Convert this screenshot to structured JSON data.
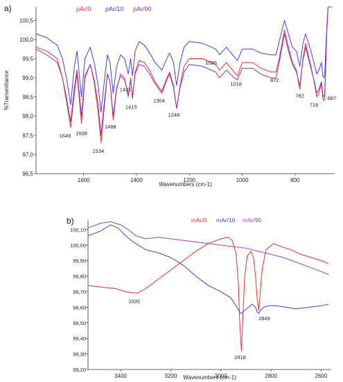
{
  "chart_data": [
    {
      "panel_label": "a)",
      "type": "line",
      "xlabel": "Wavenumbers (cm-1)",
      "ylabel": "%Transmittance",
      "xlim": [
        1780,
        650
      ],
      "ylim": [
        96.5,
        100.85
      ],
      "x_ticks": [
        1600,
        1400,
        1200,
        1000,
        800
      ],
      "x_tick_labels": [
        "1600",
        "1400",
        "1200",
        "1000",
        "800"
      ],
      "y_ticks": [
        96.5,
        97.0,
        97.5,
        98.0,
        98.5,
        99.0,
        99.5,
        100.0,
        100.5
      ],
      "y_tick_labels": [
        "96,5",
        "97,0",
        "97,5",
        "98,0",
        "98,5",
        "99,0",
        "99,5",
        "100,0",
        "100,5"
      ],
      "legend_position": "top-left",
      "series": [
        {
          "name": "pAr/0",
          "color": "#ee2c2c",
          "x": [
            1780,
            1740,
            1700,
            1680,
            1665,
            1649,
            1635,
            1625,
            1608,
            1595,
            1575,
            1560,
            1545,
            1534,
            1525,
            1510,
            1500,
            1488,
            1475,
            1460,
            1445,
            1431,
            1422,
            1415,
            1405,
            1390,
            1370,
            1350,
            1330,
            1304,
            1285,
            1275,
            1260,
            1248,
            1235,
            1220,
            1200,
            1150,
            1100,
            1086,
            1060,
            1030,
            1018,
            1000,
            960,
            930,
            890,
            872,
            860,
            840,
            825,
            810,
            795,
            782,
            770,
            760,
            740,
            725,
            718,
            710,
            700,
            695,
            690,
            687,
            680,
            675,
            665,
            660
          ],
          "y": [
            99.8,
            99.7,
            99.5,
            99.0,
            98.4,
            97.7,
            98.6,
            99.1,
            97.8,
            99.0,
            99.35,
            98.9,
            98.1,
            97.3,
            98.0,
            99.1,
            98.9,
            97.9,
            98.7,
            99.1,
            99.0,
            98.5,
            99.0,
            98.45,
            99.15,
            99.45,
            99.4,
            99.2,
            98.9,
            98.65,
            99.0,
            99.15,
            98.8,
            98.2,
            98.8,
            99.3,
            99.5,
            99.5,
            99.35,
            99.2,
            99.4,
            99.15,
            99.05,
            99.4,
            99.4,
            99.25,
            99.15,
            99.15,
            99.5,
            100.25,
            99.8,
            99.4,
            99.2,
            98.7,
            99.5,
            99.9,
            99.3,
            98.8,
            98.5,
            98.6,
            98.85,
            98.45,
            98.4,
            98.6,
            100.2,
            100.85,
            100.85,
            100.85
          ],
          "annotations": [
            {
              "x": 1649,
              "label": "1649"
            },
            {
              "x": 1608,
              "label": "1608"
            },
            {
              "x": 1534,
              "label": "1534"
            },
            {
              "x": 1488,
              "label": "1488"
            },
            {
              "x": 1431,
              "label": "1431"
            },
            {
              "x": 1415,
              "label": "1415"
            },
            {
              "x": 1304,
              "label": "1304"
            },
            {
              "x": 1248,
              "label": "1248"
            },
            {
              "x": 1086,
              "label": "1086"
            },
            {
              "x": 1018,
              "label": "1018"
            },
            {
              "x": 872,
              "label": "872"
            },
            {
              "x": 782,
              "label": "782"
            },
            {
              "x": 718,
              "label": "718"
            },
            {
              "x": 687,
              "label": "687"
            }
          ]
        },
        {
          "name": "pAr/10",
          "color": "#3d3df0",
          "x": [
            1780,
            1740,
            1700,
            1680,
            1665,
            1649,
            1635,
            1625,
            1608,
            1595,
            1575,
            1560,
            1545,
            1534,
            1525,
            1510,
            1500,
            1488,
            1475,
            1460,
            1445,
            1431,
            1422,
            1415,
            1405,
            1390,
            1370,
            1350,
            1330,
            1304,
            1285,
            1275,
            1260,
            1248,
            1235,
            1220,
            1200,
            1150,
            1100,
            1086,
            1060,
            1030,
            1018,
            1000,
            960,
            930,
            890,
            872,
            860,
            840,
            825,
            810,
            795,
            782,
            770,
            760,
            740,
            725,
            718,
            710,
            700,
            695,
            690,
            687,
            680,
            675,
            665,
            660
          ],
          "y": [
            100.15,
            100.05,
            99.85,
            99.5,
            99.0,
            98.3,
            99.3,
            99.7,
            98.5,
            99.5,
            99.8,
            99.4,
            98.8,
            98.1,
            98.7,
            99.6,
            99.4,
            98.6,
            99.3,
            99.6,
            99.5,
            99.1,
            99.5,
            99.05,
            99.7,
            99.95,
            99.85,
            99.65,
            99.4,
            99.2,
            99.5,
            99.65,
            99.4,
            98.8,
            99.4,
            99.8,
            99.95,
            99.9,
            99.75,
            99.6,
            99.8,
            99.55,
            99.45,
            99.75,
            99.75,
            99.65,
            99.6,
            99.6,
            99.95,
            100.5,
            100.15,
            99.8,
            99.7,
            99.3,
            99.9,
            100.15,
            99.7,
            99.3,
            99.1,
            99.2,
            99.4,
            99.05,
            99.0,
            99.2,
            100.3,
            100.85,
            100.85,
            100.85
          ]
        },
        {
          "name": "pAr/90",
          "color": "#8a2fbf",
          "x": [
            1780,
            1740,
            1700,
            1680,
            1665,
            1649,
            1635,
            1625,
            1608,
            1595,
            1575,
            1560,
            1545,
            1534,
            1525,
            1510,
            1500,
            1488,
            1475,
            1460,
            1445,
            1431,
            1422,
            1415,
            1405,
            1390,
            1370,
            1350,
            1330,
            1304,
            1285,
            1275,
            1260,
            1248,
            1235,
            1220,
            1200,
            1150,
            1100,
            1086,
            1060,
            1030,
            1018,
            1000,
            960,
            930,
            890,
            872,
            860,
            840,
            825,
            810,
            795,
            782,
            770,
            760,
            740,
            725,
            718,
            710,
            700,
            695,
            690,
            687,
            680,
            675,
            665,
            660
          ],
          "y": [
            99.75,
            99.6,
            99.4,
            99.0,
            98.5,
            97.85,
            98.75,
            99.2,
            98.0,
            99.05,
            99.35,
            98.95,
            98.3,
            97.5,
            98.15,
            99.1,
            98.9,
            98.0,
            98.75,
            99.05,
            98.95,
            98.55,
            98.95,
            98.5,
            99.1,
            99.35,
            99.3,
            99.1,
            98.85,
            98.6,
            98.95,
            99.1,
            98.75,
            98.2,
            98.75,
            99.15,
            99.35,
            99.3,
            99.15,
            99.0,
            99.2,
            99.0,
            98.95,
            99.25,
            99.25,
            99.1,
            99.0,
            99.0,
            99.4,
            100.15,
            99.7,
            99.35,
            99.15,
            98.8,
            99.45,
            99.8,
            99.25,
            98.85,
            98.6,
            98.7,
            98.9,
            98.55,
            98.5,
            98.7,
            100.2,
            100.85,
            100.85,
            100.85
          ]
        }
      ]
    },
    {
      "panel_label": "b)",
      "type": "line",
      "xlabel": "Wavenumbers (cm-1)",
      "ylabel": "",
      "xlim": [
        3530,
        2560
      ],
      "ylim": [
        99.2,
        100.16
      ],
      "x_ticks": [
        3400,
        3200,
        3000,
        2800,
        2600
      ],
      "x_tick_labels": [
        "3400",
        "3200",
        "3000",
        "2800",
        "2600"
      ],
      "y_ticks": [
        99.2,
        99.3,
        99.4,
        99.5,
        99.6,
        99.7,
        99.8,
        99.9,
        100.0,
        100.1
      ],
      "y_tick_labels": [
        "99,20",
        "99,30",
        "99,40",
        "99,50",
        "99,60",
        "99,70",
        "99,80",
        "99,90",
        "100,00",
        "100,10"
      ],
      "legend_position": "top-right",
      "series": [
        {
          "name": "mAr/0",
          "color": "#ee2c2c",
          "x": [
            3530,
            3480,
            3420,
            3380,
            3335,
            3300,
            3250,
            3200,
            3150,
            3100,
            3050,
            3000,
            2970,
            2955,
            2940,
            2930,
            2925,
            2918,
            2912,
            2905,
            2895,
            2880,
            2870,
            2862,
            2855,
            2849,
            2843,
            2835,
            2820,
            2790,
            2760,
            2720,
            2680,
            2640,
            2600,
            2570
          ],
          "y": [
            99.74,
            99.73,
            99.72,
            99.7,
            99.69,
            99.72,
            99.78,
            99.84,
            99.9,
            99.96,
            100.01,
            100.04,
            100.05,
            100.03,
            99.95,
            99.75,
            99.5,
            99.32,
            99.55,
            99.8,
            99.93,
            99.96,
            99.92,
            99.8,
            99.65,
            99.58,
            99.7,
            99.85,
            99.97,
            100.01,
            99.99,
            99.97,
            99.94,
            99.92,
            99.9,
            99.88
          ]
        },
        {
          "name": "mAr/10",
          "color": "#3d3df0",
          "x": [
            3530,
            3480,
            3440,
            3410,
            3380,
            3350,
            3300,
            3250,
            3200,
            3150,
            3100,
            3050,
            3000,
            2960,
            2940,
            2925,
            2918,
            2905,
            2890,
            2875,
            2862,
            2855,
            2849,
            2842,
            2830,
            2810,
            2780,
            2740,
            2700,
            2650,
            2600,
            2570
          ],
          "y": [
            100.06,
            100.09,
            100.13,
            100.11,
            100.06,
            100.02,
            99.97,
            99.95,
            99.92,
            99.87,
            99.8,
            99.74,
            99.7,
            99.66,
            99.61,
            99.57,
            99.56,
            99.58,
            99.6,
            99.62,
            99.6,
            99.57,
            99.56,
            99.58,
            99.6,
            99.61,
            99.61,
            99.6,
            99.59,
            99.6,
            99.61,
            99.62
          ]
        },
        {
          "name": "mAr/90",
          "color": "#a23ec4",
          "x": [
            3530,
            3480,
            3440,
            3400,
            3370,
            3340,
            3300,
            3250,
            3200,
            3150,
            3100,
            3050,
            3000,
            2950,
            2900,
            2850,
            2800,
            2750,
            2700,
            2650,
            2600,
            2570
          ],
          "y": [
            100.11,
            100.14,
            100.15,
            100.13,
            100.1,
            100.06,
            100.04,
            100.05,
            100.04,
            100.03,
            100.02,
            100.01,
            100.0,
            99.99,
            99.98,
            99.96,
            99.94,
            99.92,
            99.89,
            99.86,
            99.83,
            99.81
          ]
        }
      ],
      "annotations": [
        {
          "x": 3335,
          "label": "3335"
        },
        {
          "x": 2918,
          "label": "2918"
        },
        {
          "x": 2849,
          "label": "2849"
        }
      ]
    }
  ]
}
